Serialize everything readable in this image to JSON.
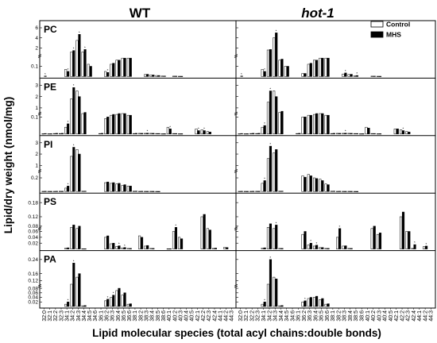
{
  "chart_data": {
    "type": "bar",
    "titles": [
      "WT",
      "hot-1"
    ],
    "xlabel": "Lipid molecular species (total acyl chains:double bonds)",
    "ylabel": "Lipid/dry weight (nmol/mg)",
    "legend": {
      "position": "top-right",
      "entries": [
        "Control",
        "MHS"
      ]
    },
    "colors": {
      "control": "#ffffff",
      "mhs": "#000000"
    },
    "categories": [
      "32:0",
      "32:1",
      "32:2",
      "32:3",
      "34:1",
      "34:2",
      "34:3",
      "34:4",
      "34:5",
      "34:6",
      "36:1",
      "36:2",
      "36:3",
      "36:4",
      "36:5",
      "36:6",
      "38:1",
      "38:2",
      "38:3",
      "38:4",
      "38:5",
      "38:6",
      "40:1",
      "40:2",
      "40:3",
      "40:4",
      "40:5",
      "42:1",
      "42:2",
      "42:3",
      "42:4",
      "44:1",
      "44:2",
      "44:3"
    ],
    "rows": [
      {
        "label": "PC",
        "ticks": [
          {
            "v": 0.1,
            "t": "0.1"
          },
          {
            "v": 2,
            "t": "2"
          },
          {
            "v": 4,
            "t": "4"
          },
          {
            "v": 6,
            "t": "6"
          }
        ],
        "seg": [
          [
            0,
            0.2
          ],
          [
            0.4,
            6
          ]
        ],
        "wt": {
          "control": [
            0,
            0,
            0,
            0,
            0.07,
            1.2,
            3.5,
            1.2,
            0.12,
            0,
            0,
            0.05,
            0.12,
            0.16,
            0.18,
            0.18,
            0,
            0,
            0.02,
            0.015,
            0.01,
            0.005,
            0,
            0.004,
            0.003,
            0,
            0,
            0,
            0,
            0,
            0,
            0,
            0,
            0
          ],
          "mhs": [
            0.005,
            0,
            0,
            0,
            0.05,
            1.5,
            4.7,
            1.7,
            0.1,
            0,
            0,
            0.04,
            0.13,
            0.16,
            0.18,
            0.18,
            0,
            0,
            0.022,
            0.015,
            0.01,
            0.005,
            0,
            0.004,
            0.003,
            0,
            0,
            0,
            0,
            0,
            0,
            0,
            0,
            0
          ]
        },
        "hot1": {
          "control": [
            0,
            0,
            0,
            0,
            0.07,
            1.6,
            4.0,
            0.16,
            0.1,
            0,
            0,
            0.03,
            0.12,
            0.16,
            0.18,
            0.18,
            0,
            0,
            0.025,
            0.02,
            0.008,
            0,
            0,
            0.004,
            0.003,
            0,
            0,
            0,
            0,
            0,
            0,
            0,
            0,
            0
          ],
          "mhs": [
            0.005,
            0,
            0,
            0,
            0.05,
            1.7,
            5.0,
            0.17,
            0.1,
            0,
            0,
            0.03,
            0.13,
            0.16,
            0.18,
            0.18,
            0,
            0,
            0.035,
            0.022,
            0.01,
            0,
            0,
            0.004,
            0.003,
            0,
            0,
            0,
            0,
            0,
            0,
            0,
            0,
            0
          ]
        }
      },
      {
        "label": "PE",
        "ticks": [
          {
            "v": 0.1,
            "t": "0.1"
          },
          {
            "v": 1,
            "t": "1"
          },
          {
            "v": 2,
            "t": "2"
          },
          {
            "v": 3,
            "t": "3"
          }
        ],
        "seg": [
          [
            0,
            0.12
          ],
          [
            0.5,
            3
          ]
        ],
        "wt": {
          "control": [
            0.002,
            0.002,
            0.003,
            0.003,
            0.04,
            1.8,
            2.5,
            0.5,
            0,
            0,
            0.003,
            0.09,
            0.11,
            0.115,
            0.12,
            0.11,
            0.003,
            0.004,
            0.004,
            0.004,
            0.003,
            0.002,
            0.04,
            0.003,
            0.002,
            0,
            0,
            0.03,
            0.025,
            0.015,
            0,
            0,
            0,
            0
          ],
          "mhs": [
            0.003,
            0.002,
            0.004,
            0.004,
            0.06,
            2.8,
            2.0,
            0.6,
            0,
            0,
            0.004,
            0.1,
            0.115,
            0.12,
            0.12,
            0.11,
            0.004,
            0.004,
            0.005,
            0.004,
            0.003,
            0.002,
            0.03,
            0.003,
            0.002,
            0,
            0,
            0.02,
            0.02,
            0.012,
            0,
            0,
            0,
            0
          ]
        },
        "hot1": {
          "control": [
            0.002,
            0.002,
            0.003,
            0.003,
            0.04,
            1.5,
            2.5,
            0.6,
            0,
            0,
            0.003,
            0.1,
            0.11,
            0.115,
            0.12,
            0.11,
            0.003,
            0.004,
            0.004,
            0.004,
            0.003,
            0.002,
            0.04,
            0.003,
            0.002,
            0,
            0,
            0.03,
            0.025,
            0.015,
            0,
            0,
            0,
            0
          ],
          "mhs": [
            0.003,
            0.002,
            0.004,
            0.004,
            0.05,
            2.5,
            2.0,
            0.7,
            0,
            0,
            0.004,
            0.1,
            0.11,
            0.12,
            0.12,
            0.11,
            0.004,
            0.004,
            0.005,
            0.004,
            0.003,
            0.002,
            0.035,
            0.003,
            0.002,
            0,
            0,
            0.03,
            0.02,
            0.012,
            0,
            0,
            0,
            0
          ]
        }
      },
      {
        "label": "PI",
        "ticks": [
          {
            "v": 0.2,
            "t": "0.2"
          },
          {
            "v": 1,
            "t": "1"
          },
          {
            "v": 2,
            "t": "2"
          },
          {
            "v": 3,
            "t": "3"
          }
        ],
        "seg": [
          [
            0,
            0.3
          ],
          [
            0.5,
            3
          ]
        ],
        "wt": {
          "control": [
            0.003,
            0.003,
            0.003,
            0.004,
            0.05,
            1.8,
            2.4,
            0.005,
            0,
            0,
            0,
            0.13,
            0.12,
            0.11,
            0.09,
            0.08,
            0.005,
            0.003,
            0.003,
            0.003,
            0.002,
            0,
            0,
            0,
            0,
            0,
            0,
            0,
            0,
            0,
            0,
            0,
            0,
            0
          ],
          "mhs": [
            0.004,
            0.003,
            0.004,
            0.004,
            0.08,
            2.6,
            2.0,
            0.006,
            0,
            0,
            0,
            0.14,
            0.13,
            0.12,
            0.1,
            0.08,
            0.006,
            0.004,
            0.003,
            0.003,
            0.002,
            0,
            0,
            0,
            0,
            0,
            0,
            0,
            0,
            0,
            0,
            0,
            0,
            0
          ]
        },
        "hot1": {
          "control": [
            0.003,
            0.003,
            0.003,
            0.004,
            0.12,
            1.6,
            2.1,
            0.005,
            0,
            0,
            0,
            0.23,
            0.25,
            0.2,
            0.18,
            0.11,
            0.005,
            0.003,
            0.003,
            0.003,
            0.002,
            0,
            0,
            0,
            0,
            0,
            0,
            0,
            0,
            0,
            0,
            0,
            0,
            0
          ],
          "mhs": [
            0.004,
            0.003,
            0.004,
            0.004,
            0.16,
            2.7,
            2.4,
            0.006,
            0,
            0,
            0,
            0.21,
            0.23,
            0.19,
            0.16,
            0.1,
            0.006,
            0.004,
            0.003,
            0.003,
            0.002,
            0,
            0,
            0,
            0,
            0,
            0,
            0,
            0,
            0,
            0,
            0,
            0,
            0
          ]
        }
      },
      {
        "label": "PS",
        "ticks": [
          {
            "v": 0.02,
            "t": "0.02"
          },
          {
            "v": 0.04,
            "t": "0.04"
          },
          {
            "v": 0.06,
            "t": "0.06"
          },
          {
            "v": 0.08,
            "t": "0.08"
          },
          {
            "v": 0.12,
            "t": "0.12"
          },
          {
            "v": 0.18,
            "t": "0.18"
          }
        ],
        "seg": [
          [
            0,
            0.07
          ],
          [
            0.07,
            0.19
          ]
        ],
        "wt": {
          "control": [
            0,
            0,
            0,
            0,
            0.003,
            0.075,
            0.07,
            0.001,
            0,
            0,
            0,
            0.04,
            0.018,
            0.009,
            0.004,
            0.002,
            0,
            0.045,
            0.01,
            0.002,
            0,
            0,
            0.001,
            0.06,
            0.04,
            0,
            0,
            0,
            0.12,
            0.07,
            0.002,
            0,
            0.006,
            0
          ],
          "mhs": [
            0,
            0,
            0,
            0,
            0.004,
            0.085,
            0.08,
            0.001,
            0,
            0,
            0,
            0.045,
            0.02,
            0.011,
            0.005,
            0.002,
            0,
            0.04,
            0.012,
            0.002,
            0,
            0,
            0.001,
            0.075,
            0.035,
            0,
            0,
            0,
            0.13,
            0.065,
            0.003,
            0,
            0.005,
            0
          ]
        },
        "hot1": {
          "control": [
            0,
            0,
            0,
            0,
            0.003,
            0.075,
            0.07,
            0.002,
            0,
            0,
            0,
            0.05,
            0.014,
            0.01,
            0.005,
            0.002,
            0,
            0.04,
            0.01,
            0.002,
            0,
            0,
            0,
            0.07,
            0.05,
            0,
            0,
            0,
            0.12,
            0.06,
            0.002,
            0,
            0.008,
            0
          ],
          "mhs": [
            0,
            0,
            0,
            0,
            0.004,
            0.09,
            0.085,
            0.002,
            0,
            0,
            0,
            0.06,
            0.02,
            0.013,
            0.005,
            0.002,
            0,
            0.07,
            0.011,
            0.002,
            0,
            0,
            0,
            0.08,
            0.055,
            0,
            0,
            0,
            0.14,
            0.06,
            0.015,
            0,
            0.01,
            0
          ]
        }
      },
      {
        "label": "PA",
        "ticks": [
          {
            "v": 0.02,
            "t": "0.02"
          },
          {
            "v": 0.04,
            "t": "0.04"
          },
          {
            "v": 0.06,
            "t": "0.06"
          },
          {
            "v": 0.08,
            "t": "0.08"
          },
          {
            "v": 0.12,
            "t": "0.12"
          },
          {
            "v": 0.16,
            "t": "0.16"
          },
          {
            "v": 0.24,
            "t": "0.24"
          }
        ],
        "seg": [
          [
            0,
            0.09
          ],
          [
            0.09,
            0.25
          ]
        ],
        "wt": {
          "control": [
            0,
            0,
            0,
            0,
            0.01,
            0.1,
            0.14,
            0.003,
            0,
            0,
            0,
            0.025,
            0.04,
            0.07,
            0.05,
            0.01,
            0,
            0,
            0,
            0,
            0,
            0,
            0,
            0,
            0,
            0,
            0,
            0,
            0,
            0,
            0,
            0,
            0,
            0
          ],
          "mhs": [
            0,
            0,
            0,
            0,
            0.02,
            0.22,
            0.16,
            0.004,
            0,
            0,
            0,
            0.032,
            0.05,
            0.08,
            0.06,
            0.012,
            0,
            0,
            0,
            0,
            0,
            0,
            0,
            0,
            0,
            0,
            0,
            0,
            0,
            0,
            0,
            0,
            0,
            0
          ]
        },
        "hot1": {
          "control": [
            0,
            0,
            0,
            0,
            0.01,
            0.1,
            0.14,
            0.003,
            0,
            0,
            0,
            0.02,
            0.035,
            0.04,
            0.03,
            0.01,
            0,
            0,
            0,
            0,
            0,
            0,
            0,
            0,
            0,
            0,
            0,
            0,
            0,
            0,
            0,
            0,
            0,
            0
          ],
          "mhs": [
            0,
            0,
            0,
            0,
            0.02,
            0.24,
            0.13,
            0.004,
            0,
            0,
            0,
            0.025,
            0.04,
            0.045,
            0.035,
            0.012,
            0,
            0,
            0,
            0,
            0,
            0,
            0,
            0,
            0,
            0,
            0,
            0,
            0,
            0,
            0,
            0,
            0,
            0
          ]
        }
      }
    ]
  }
}
